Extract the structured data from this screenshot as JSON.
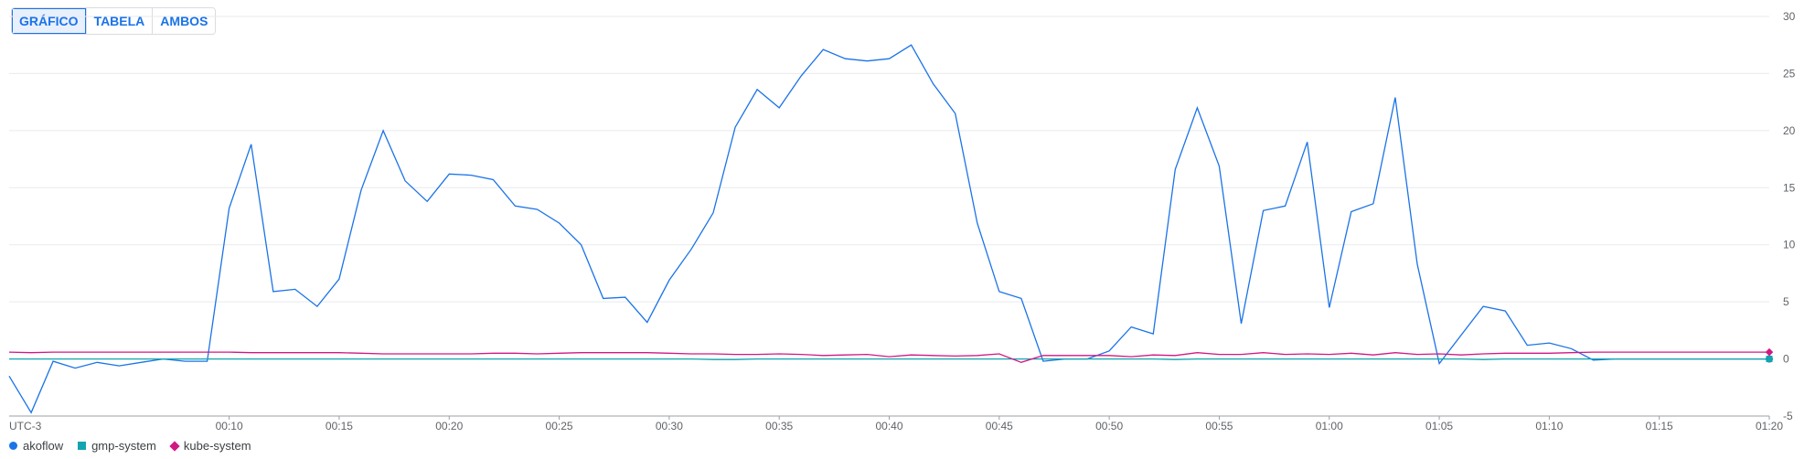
{
  "tabs": [
    {
      "label": "GRÁFICO",
      "active": true
    },
    {
      "label": "TABELA",
      "active": false
    },
    {
      "label": "AMBOS",
      "active": false
    }
  ],
  "chart_data": {
    "type": "line",
    "timezone_label": "UTC-3",
    "x_start_minutes": 0,
    "x_end_minutes": 80,
    "x_step_minutes": 1,
    "x_tick_labels": [
      "00:10",
      "00:15",
      "00:20",
      "00:25",
      "00:30",
      "00:35",
      "00:40",
      "00:45",
      "00:50",
      "00:55",
      "01:00",
      "01:05",
      "01:10",
      "01:15",
      "01:20"
    ],
    "x_tick_minutes": [
      10,
      15,
      20,
      25,
      30,
      35,
      40,
      45,
      50,
      55,
      60,
      65,
      70,
      75,
      80
    ],
    "y_ticks": [
      -5,
      0,
      5,
      10,
      15,
      20,
      25,
      30
    ],
    "ylim": [
      -5,
      30
    ],
    "grid": true,
    "legend_position": "bottom-left",
    "series": [
      {
        "name": "akoflow",
        "color": "#1a73e8",
        "marker": "circle",
        "values": [
          -1.5,
          -4.7,
          -0.2,
          -0.8,
          -0.3,
          -0.6,
          -0.3,
          0.0,
          -0.2,
          -0.2,
          13.2,
          18.8,
          5.9,
          6.1,
          4.6,
          7.0,
          14.8,
          20.0,
          15.6,
          13.8,
          16.2,
          16.1,
          15.7,
          13.4,
          13.1,
          11.9,
          10.0,
          5.3,
          5.4,
          3.2,
          6.9,
          9.6,
          12.8,
          20.3,
          23.6,
          22.0,
          24.8,
          27.1,
          26.3,
          26.1,
          26.3,
          27.5,
          24.1,
          21.5,
          11.9,
          5.9,
          5.3,
          -0.2,
          0.0,
          0.0,
          0.7,
          2.8,
          2.2,
          16.6,
          22.0,
          16.9,
          3.1,
          13.0,
          13.4,
          19.0,
          4.5,
          12.9,
          13.6,
          22.9,
          8.3,
          -0.4,
          2.1,
          4.6,
          4.2,
          1.2,
          1.4,
          0.9,
          -0.1,
          0.0,
          0.0,
          0.0,
          0.0,
          0.0,
          0.0,
          0.0,
          0.0
        ]
      },
      {
        "name": "gmp-system",
        "color": "#12a4af",
        "marker": "square",
        "values": [
          0.0,
          0.0,
          0.0,
          0.0,
          0.0,
          0.0,
          0.0,
          0.0,
          0.0,
          0.0,
          0.0,
          0.0,
          0.0,
          0.0,
          0.0,
          0.0,
          0.0,
          0.0,
          0.0,
          0.0,
          0.0,
          0.0,
          0.0,
          0.0,
          0.0,
          0.0,
          0.0,
          0.0,
          0.0,
          0.0,
          0.0,
          0.0,
          -0.05,
          -0.05,
          0.0,
          0.0,
          0.0,
          0.0,
          0.0,
          0.0,
          0.0,
          0.0,
          0.0,
          0.0,
          0.0,
          0.0,
          0.0,
          0.0,
          0.0,
          0.0,
          0.0,
          0.0,
          0.0,
          -0.05,
          0.0,
          0.0,
          0.0,
          0.0,
          0.0,
          0.0,
          0.0,
          0.0,
          0.0,
          0.0,
          0.0,
          0.0,
          0.0,
          -0.05,
          0.0,
          0.0,
          0.0,
          0.0,
          0.0,
          0.0,
          0.0,
          0.0,
          0.0,
          0.0,
          0.0,
          0.0,
          0.0
        ]
      },
      {
        "name": "kube-system",
        "color": "#d01884",
        "marker": "diamond",
        "values": [
          0.6,
          0.55,
          0.6,
          0.6,
          0.6,
          0.6,
          0.6,
          0.6,
          0.6,
          0.6,
          0.6,
          0.55,
          0.55,
          0.55,
          0.55,
          0.55,
          0.5,
          0.45,
          0.45,
          0.45,
          0.45,
          0.45,
          0.5,
          0.5,
          0.45,
          0.5,
          0.55,
          0.55,
          0.55,
          0.55,
          0.5,
          0.45,
          0.45,
          0.4,
          0.4,
          0.45,
          0.4,
          0.3,
          0.35,
          0.4,
          0.2,
          0.35,
          0.3,
          0.25,
          0.3,
          0.45,
          -0.3,
          0.3,
          0.3,
          0.3,
          0.3,
          0.2,
          0.35,
          0.3,
          0.55,
          0.4,
          0.4,
          0.55,
          0.4,
          0.45,
          0.4,
          0.5,
          0.35,
          0.55,
          0.4,
          0.45,
          0.35,
          0.45,
          0.5,
          0.5,
          0.5,
          0.55,
          0.6,
          0.6,
          0.6,
          0.6,
          0.6,
          0.6,
          0.6,
          0.6,
          0.6
        ]
      }
    ]
  }
}
